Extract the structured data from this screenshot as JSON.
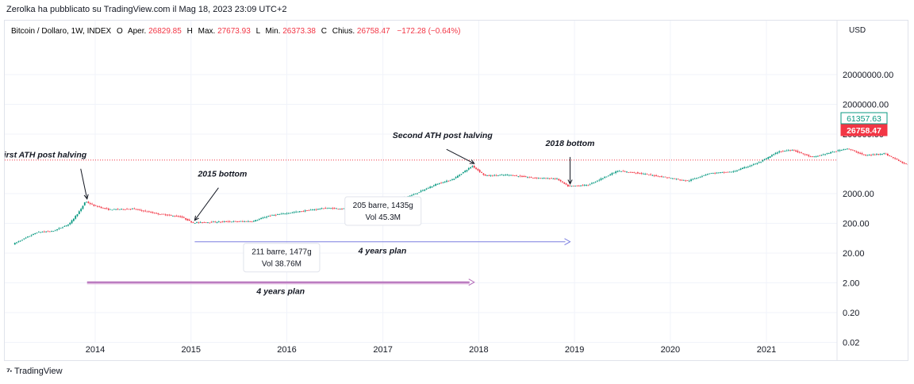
{
  "published_line": "Zerolka ha pubblicato su TradingView.com il Mag 18, 2023 23:09 UTC+2",
  "footer": {
    "logo_icon": "tradingview-logo-icon",
    "brand": "TradingView"
  },
  "chart_data": {
    "type": "candlestick",
    "symbol": "Bitcoin / Dollaro, 1W, INDEX",
    "ohlc": [
      {
        "label": "O",
        "name": "Aper.",
        "value": "26829.85"
      },
      {
        "label": "H",
        "name": "Max.",
        "value": "27673.93"
      },
      {
        "label": "L",
        "name": "Min.",
        "value": "26373.38"
      },
      {
        "label": "C",
        "name": "Chius.",
        "value": "26758.47"
      }
    ],
    "change": "−172.28 (−0.64%)",
    "currency": "USD",
    "y_scale": "log",
    "y_ticks": [
      "20000000.00",
      "2000000.00",
      "200000.00",
      "2000.00",
      "200.00",
      "20.00",
      "2.00",
      "0.20",
      "0.02"
    ],
    "x_ticks": [
      "2014",
      "2015",
      "2016",
      "2017",
      "2018",
      "2019",
      "2020",
      "2021"
    ],
    "price_labels": [
      {
        "value": "61357.63",
        "color": "#089981",
        "style": "outline"
      },
      {
        "value": "26758.47",
        "color": "#f23645",
        "style": "filled"
      }
    ],
    "price_series": [
      [
        "2013-03-01",
        40
      ],
      [
        "2013-06-01",
        100
      ],
      [
        "2013-08-01",
        110
      ],
      [
        "2013-10-01",
        190
      ],
      [
        "2013-11-15",
        600
      ],
      [
        "2013-12-01",
        1100
      ],
      [
        "2014-01-01",
        800
      ],
      [
        "2014-03-01",
        580
      ],
      [
        "2014-06-01",
        620
      ],
      [
        "2014-09-01",
        420
      ],
      [
        "2014-12-01",
        330
      ],
      [
        "2015-01-15",
        210
      ],
      [
        "2015-06-01",
        230
      ],
      [
        "2015-09-01",
        235
      ],
      [
        "2015-11-01",
        360
      ],
      [
        "2016-01-01",
        430
      ],
      [
        "2016-06-01",
        650
      ],
      [
        "2016-09-01",
        610
      ],
      [
        "2017-01-01",
        1000
      ],
      [
        "2017-05-01",
        1800
      ],
      [
        "2017-08-01",
        4200
      ],
      [
        "2017-10-01",
        6000
      ],
      [
        "2017-12-15",
        17000
      ],
      [
        "2018-02-01",
        8000
      ],
      [
        "2018-05-01",
        8500
      ],
      [
        "2018-08-01",
        6800
      ],
      [
        "2018-11-01",
        6300
      ],
      [
        "2018-12-15",
        3500
      ],
      [
        "2019-03-01",
        3900
      ],
      [
        "2019-06-20",
        11500
      ],
      [
        "2019-09-01",
        10000
      ],
      [
        "2019-12-15",
        7200
      ],
      [
        "2020-03-15",
        5300
      ],
      [
        "2020-06-01",
        9500
      ],
      [
        "2020-09-01",
        10800
      ],
      [
        "2020-12-15",
        23000
      ],
      [
        "2021-02-20",
        50000
      ],
      [
        "2021-04-15",
        60000
      ],
      [
        "2021-07-01",
        33000
      ],
      [
        "2021-11-10",
        66000
      ],
      [
        "2022-01-20",
        38000
      ],
      [
        "2022-04-01",
        45000
      ],
      [
        "2022-06-20",
        20000
      ],
      [
        "2022-11-15",
        16500
      ],
      [
        "2023-02-01",
        23000
      ],
      [
        "2023-04-10",
        29000
      ],
      [
        "2023-05-18",
        26758
      ]
    ],
    "annotations": [
      {
        "text": "First ATH post halving",
        "date": "2013-12-01",
        "price": 1100
      },
      {
        "text": "2015 bottom",
        "date": "2015-01-15",
        "price": 210
      },
      {
        "text": "Second ATH post halving",
        "date": "2017-12-15",
        "price": 17000
      },
      {
        "text": "2018 bottom",
        "date": "2018-12-15",
        "price": 3500
      }
    ],
    "ranges": [
      {
        "from": "2015-01-15",
        "to": "2018-12-15",
        "price": 48,
        "color": "#7b7fe0",
        "label": "4 years plan",
        "bars": "211 barre, 1477g",
        "volume": "Vol 38.76M"
      },
      {
        "from": "2013-12-01",
        "to": "2017-12-15",
        "price": 2.1,
        "color": "#b36ab8",
        "label": "4 years plan",
        "bars": "205 barre, 1435g",
        "volume": "Vol 45.3M"
      }
    ],
    "dotted_line": {
      "price": 26758,
      "color": "#f23645"
    },
    "colors": {
      "up": "#089981",
      "down": "#f23645",
      "grid": "#f0f3fa"
    }
  }
}
